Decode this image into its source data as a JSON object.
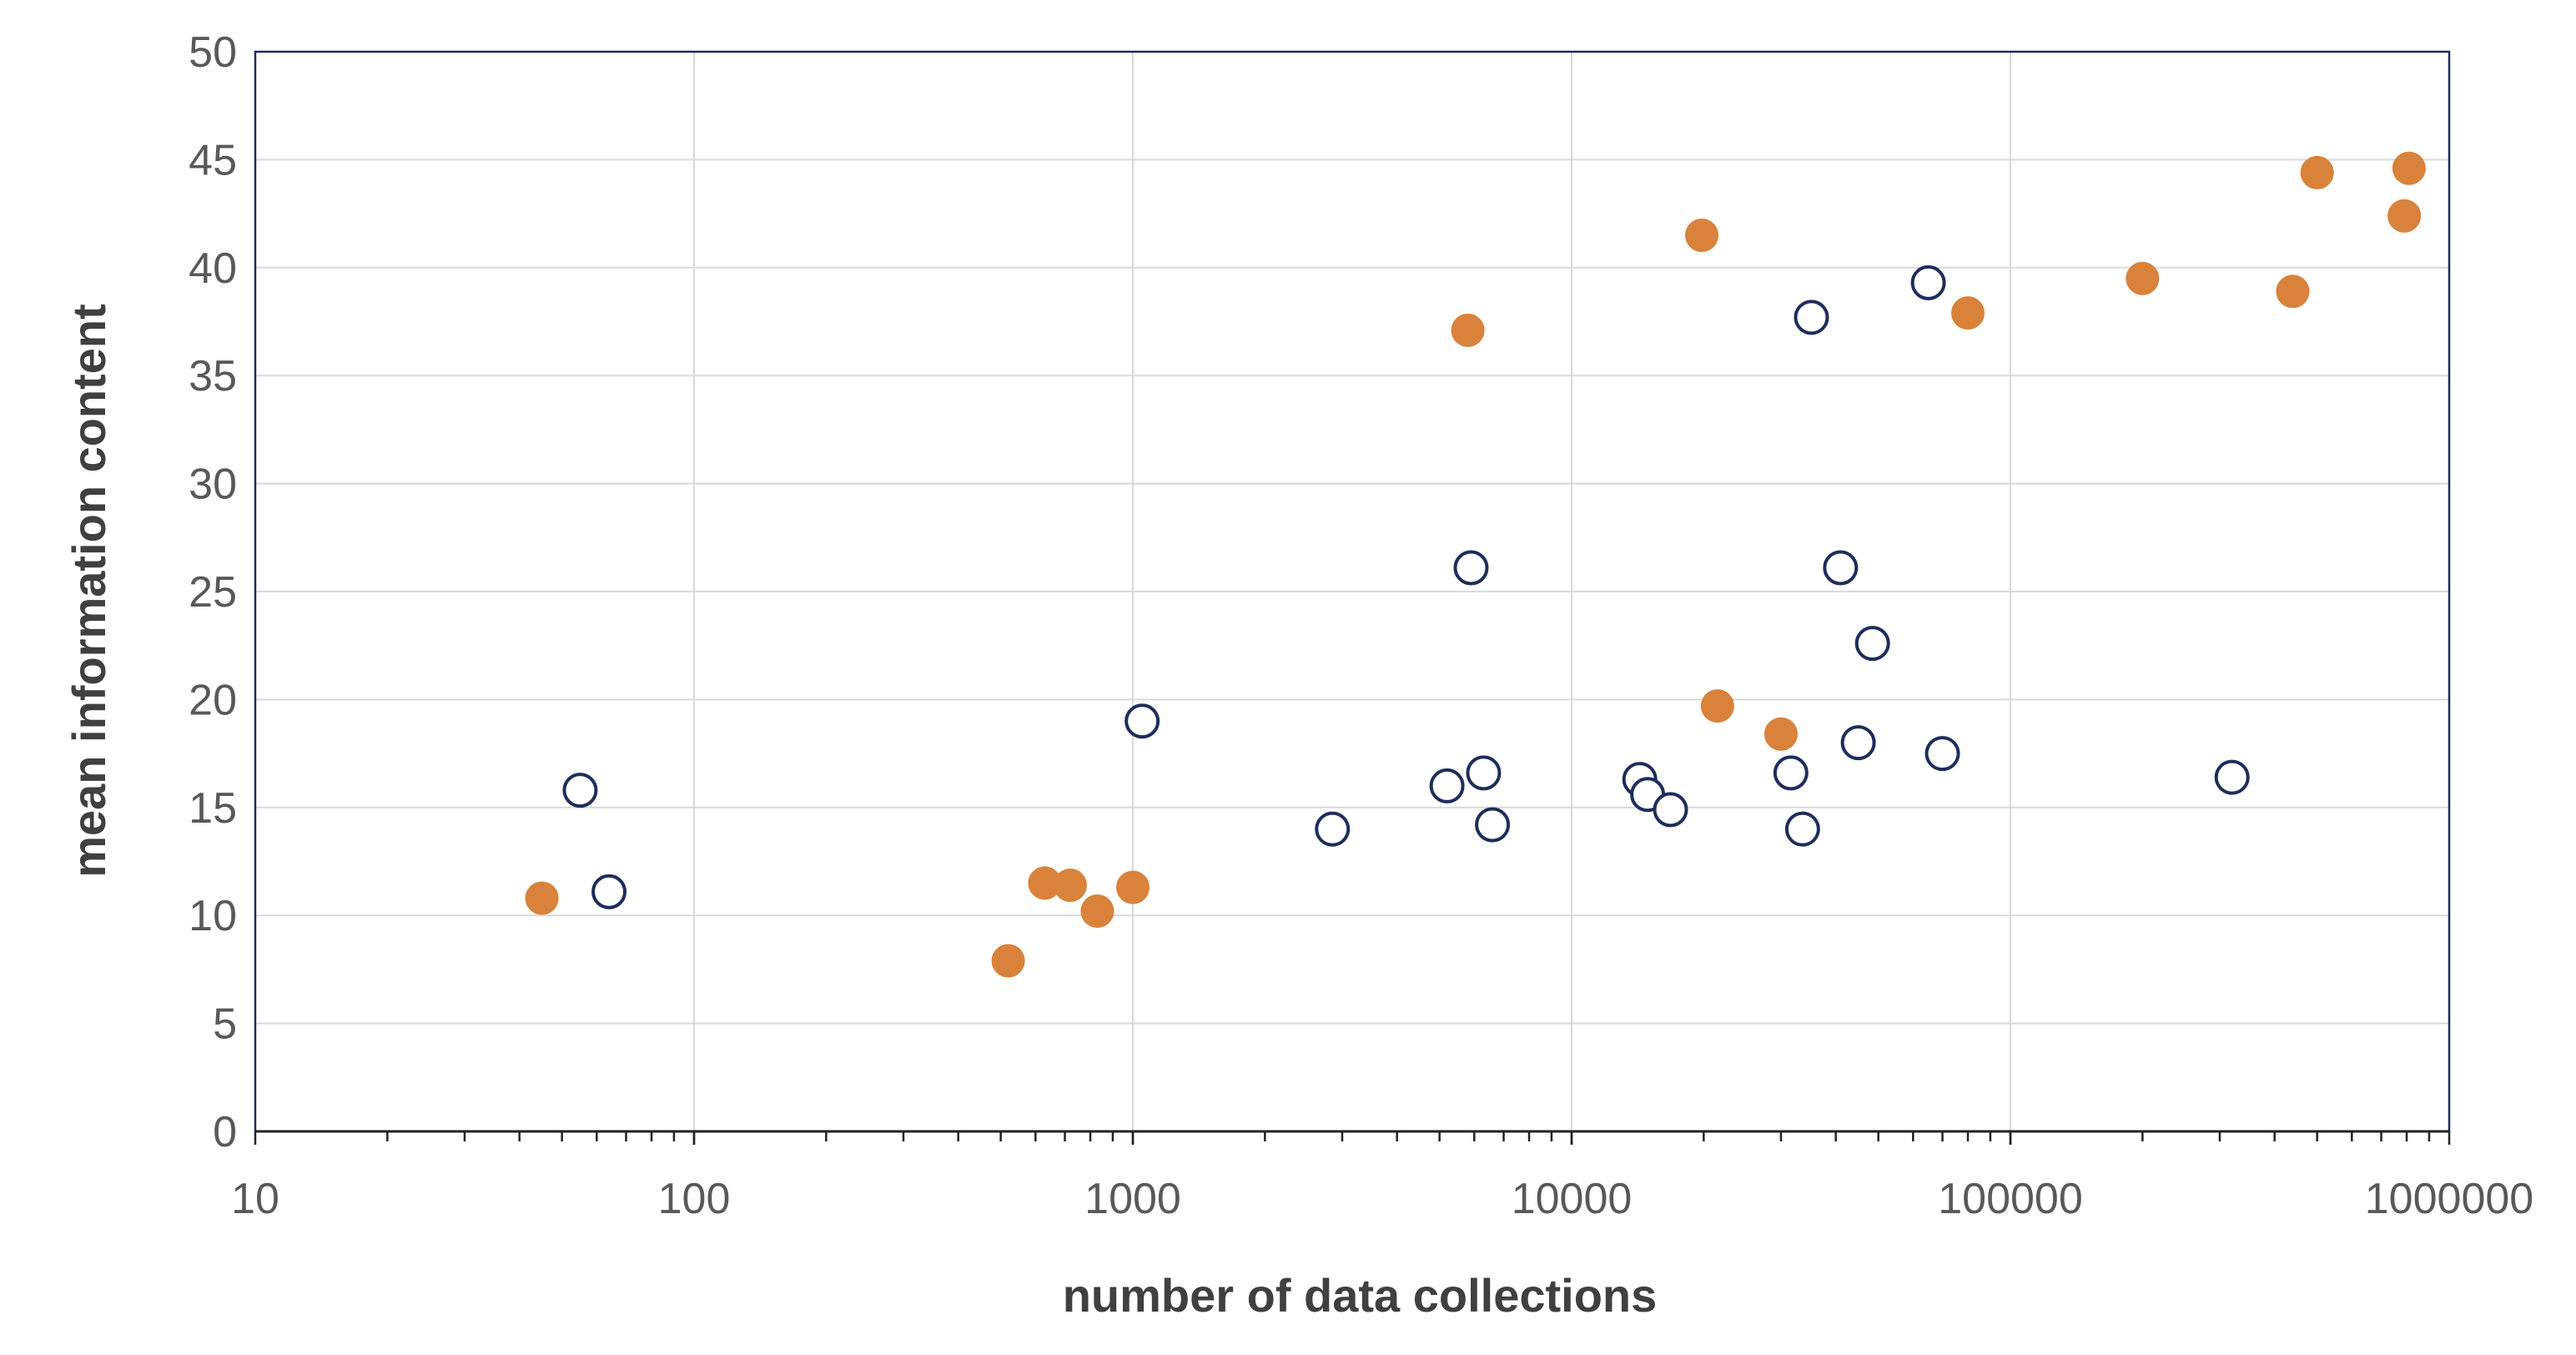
{
  "chart_data": {
    "type": "scatter",
    "title": "",
    "xlabel": "number of data collections",
    "ylabel": "mean information content",
    "xscale": "log",
    "xlim": [
      10,
      1000000
    ],
    "ylim": [
      0,
      50
    ],
    "x_ticks": [
      "10",
      "100",
      "1000",
      "10000",
      "100000",
      "1000000"
    ],
    "y_ticks": [
      "0",
      "5",
      "10",
      "15",
      "20",
      "25",
      "30",
      "35",
      "40",
      "45",
      "50"
    ],
    "grid": true,
    "legend": "none",
    "series": [
      {
        "marker": "filled-circle",
        "color": "#d9823b",
        "points": [
          {
            "x": 45,
            "y": 10.8
          },
          {
            "x": 520,
            "y": 7.9
          },
          {
            "x": 630,
            "y": 11.5
          },
          {
            "x": 720,
            "y": 11.4
          },
          {
            "x": 830,
            "y": 10.2
          },
          {
            "x": 1000,
            "y": 11.3
          },
          {
            "x": 5800,
            "y": 37.1
          },
          {
            "x": 19800,
            "y": 41.5
          },
          {
            "x": 21500,
            "y": 19.7
          },
          {
            "x": 30000,
            "y": 18.4
          },
          {
            "x": 80000,
            "y": 37.9
          },
          {
            "x": 200000,
            "y": 39.5
          },
          {
            "x": 440000,
            "y": 38.9
          },
          {
            "x": 500000,
            "y": 44.4
          },
          {
            "x": 790000,
            "y": 42.4
          },
          {
            "x": 810000,
            "y": 44.6
          }
        ]
      },
      {
        "marker": "open-circle",
        "color": "#1f2d5c",
        "points": [
          {
            "x": 55,
            "y": 15.8
          },
          {
            "x": 64,
            "y": 11.1
          },
          {
            "x": 1050,
            "y": 19.0
          },
          {
            "x": 2850,
            "y": 14.0
          },
          {
            "x": 5200,
            "y": 16.0
          },
          {
            "x": 5900,
            "y": 26.1
          },
          {
            "x": 6300,
            "y": 16.6
          },
          {
            "x": 6600,
            "y": 14.2
          },
          {
            "x": 14300,
            "y": 16.3
          },
          {
            "x": 14900,
            "y": 15.6
          },
          {
            "x": 16800,
            "y": 14.9
          },
          {
            "x": 31600,
            "y": 16.6
          },
          {
            "x": 33600,
            "y": 14.0
          },
          {
            "x": 35200,
            "y": 37.7
          },
          {
            "x": 41000,
            "y": 26.1
          },
          {
            "x": 45000,
            "y": 18.0
          },
          {
            "x": 48500,
            "y": 22.6
          },
          {
            "x": 65000,
            "y": 39.3
          },
          {
            "x": 70000,
            "y": 17.5
          },
          {
            "x": 320000,
            "y": 16.4
          }
        ]
      }
    ]
  }
}
